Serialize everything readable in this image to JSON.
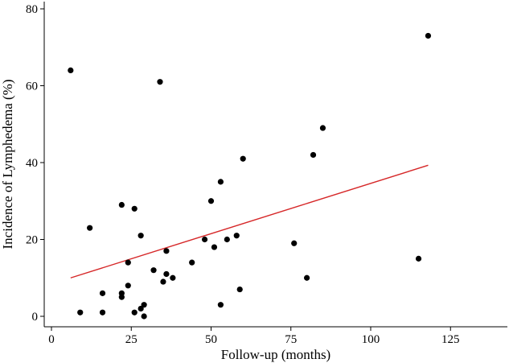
{
  "chart_data": {
    "type": "scatter",
    "title": "",
    "xlabel": "Follow-up (months)",
    "ylabel": "Incidence of Lymphedema (%)",
    "xlim": [
      -5,
      142
    ],
    "ylim": [
      -2,
      82
    ],
    "x_ticks": [
      0,
      25,
      50,
      75,
      100,
      125
    ],
    "y_ticks": [
      0,
      20,
      40,
      60,
      80
    ],
    "grid": false,
    "point_color": "#000000",
    "fit_line_color": "#d62728",
    "points": [
      {
        "x": 6,
        "y": 64
      },
      {
        "x": 9,
        "y": 1
      },
      {
        "x": 12,
        "y": 23
      },
      {
        "x": 16,
        "y": 6
      },
      {
        "x": 16,
        "y": 1
      },
      {
        "x": 22,
        "y": 29
      },
      {
        "x": 22,
        "y": 6
      },
      {
        "x": 22,
        "y": 5
      },
      {
        "x": 24,
        "y": 14
      },
      {
        "x": 24,
        "y": 8
      },
      {
        "x": 26,
        "y": 28
      },
      {
        "x": 26,
        "y": 1
      },
      {
        "x": 28,
        "y": 21
      },
      {
        "x": 28,
        "y": 2
      },
      {
        "x": 29,
        "y": 3
      },
      {
        "x": 29,
        "y": 0
      },
      {
        "x": 32,
        "y": 12
      },
      {
        "x": 34,
        "y": 61
      },
      {
        "x": 35,
        "y": 9
      },
      {
        "x": 36,
        "y": 17
      },
      {
        "x": 36,
        "y": 11
      },
      {
        "x": 38,
        "y": 10
      },
      {
        "x": 44,
        "y": 14
      },
      {
        "x": 48,
        "y": 20
      },
      {
        "x": 50,
        "y": 30
      },
      {
        "x": 51,
        "y": 18
      },
      {
        "x": 53,
        "y": 35
      },
      {
        "x": 53,
        "y": 3
      },
      {
        "x": 55,
        "y": 20
      },
      {
        "x": 58,
        "y": 21
      },
      {
        "x": 59,
        "y": 7
      },
      {
        "x": 60,
        "y": 41
      },
      {
        "x": 76,
        "y": 19
      },
      {
        "x": 80,
        "y": 10
      },
      {
        "x": 82,
        "y": 42
      },
      {
        "x": 85,
        "y": 49
      },
      {
        "x": 115,
        "y": 15
      },
      {
        "x": 118,
        "y": 73
      }
    ],
    "fit_line": {
      "x": [
        6,
        118
      ],
      "y": [
        10,
        39.3
      ]
    }
  }
}
